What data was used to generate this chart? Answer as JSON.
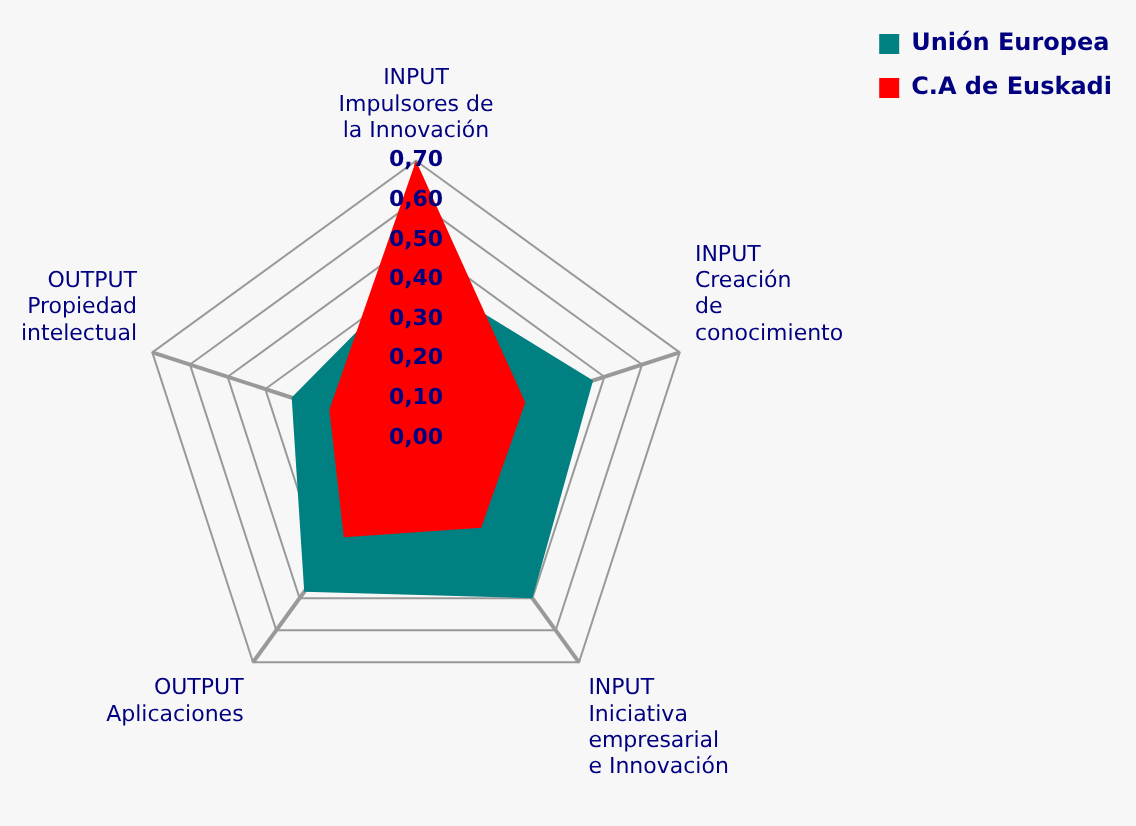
{
  "chart_data": {
    "type": "radar",
    "categories": [
      "INPUT\nImpulsores de\nla Innovación",
      "INPUT\nCreación\nde\nconocimiento",
      "INPUT\nIniciativa\nempresarial\ne Innovación",
      "OUTPUT\nAplicaciones",
      "OUTPUT\nPropiedad\nintelectual"
    ],
    "series": [
      {
        "name": "Unión Europea",
        "color": "#008080",
        "values": [
          0.42,
          0.47,
          0.5,
          0.48,
          0.33
        ]
      },
      {
        "name": "C.A de Euskadi",
        "color": "#ff0000",
        "values": [
          0.7,
          0.29,
          0.28,
          0.31,
          0.23
        ]
      }
    ],
    "ylim": [
      0,
      0.7
    ],
    "yticks": [
      {
        "value": 0,
        "label": "0,00"
      },
      {
        "value": 0.1,
        "label": "0,10"
      },
      {
        "value": 0.2,
        "label": "0,20"
      },
      {
        "value": 0.3,
        "label": "0,30"
      },
      {
        "value": 0.4,
        "label": "0,40"
      },
      {
        "value": 0.5,
        "label": "0,50"
      },
      {
        "value": 0.6,
        "label": "0,60"
      },
      {
        "value": 0.7,
        "label": "0,70"
      }
    ],
    "grid": true,
    "legend": "top right"
  }
}
